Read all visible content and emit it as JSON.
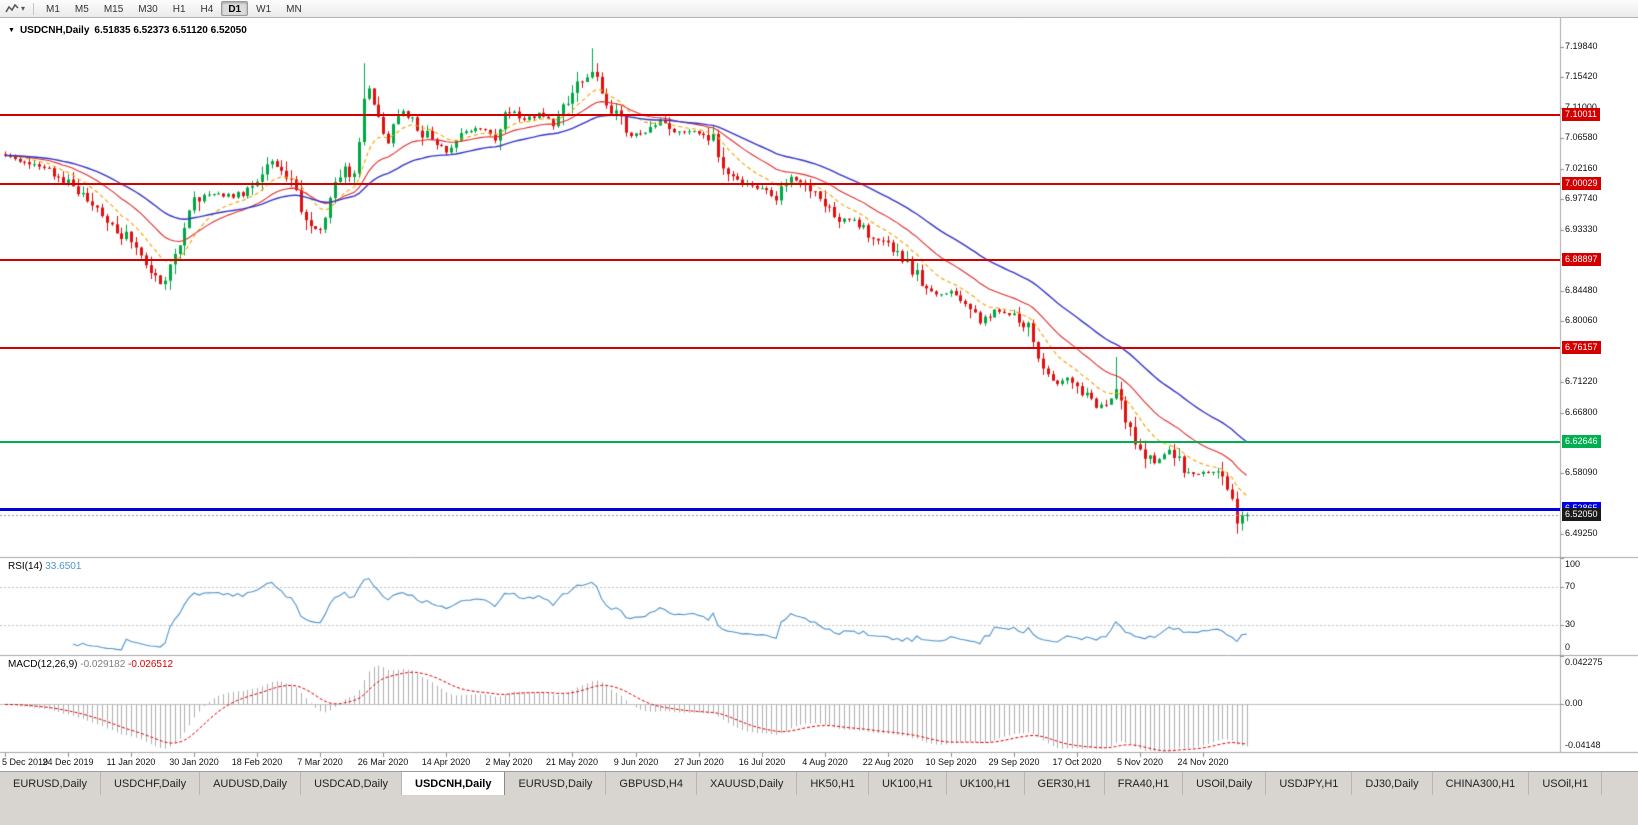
{
  "toolbar": {
    "timeframes": [
      "M1",
      "M5",
      "M15",
      "M30",
      "H1",
      "H4",
      "D1",
      "W1",
      "MN"
    ],
    "active_timeframe": "D1"
  },
  "main_chart": {
    "symbol_period": "USDCNH,Daily",
    "ohlc": "6.51835 6.52373 6.51120 6.52050"
  },
  "tabs": {
    "items": [
      "EURUSD,Daily",
      "USDCHF,Daily",
      "AUDUSD,Daily",
      "USDCAD,Daily",
      "USDCNH,Daily",
      "EURUSD,Daily",
      "GBPUSD,H4",
      "XAUUSD,Daily",
      "HK50,H1",
      "UK100,H1",
      "UK100,H1",
      "GER30,H1",
      "FRA40,H1",
      "USOil,Daily",
      "USDJPY,H1",
      "DJ30,Daily",
      "CHINA300,H1",
      "USOil,H1"
    ],
    "active_index": 4
  },
  "chart_data": {
    "type": "candlestick",
    "title": "USDCNH,Daily",
    "bar_count": 257,
    "ylim": [
      6.4607,
      7.2374
    ],
    "y_ticks": [
      "7.19840",
      "7.15420",
      "7.11000",
      "7.06580",
      "7.02160",
      "6.97740",
      "6.93330",
      "6.84480",
      "6.80060",
      "6.71220",
      "6.66800",
      "6.58090",
      "6.49250"
    ],
    "x_labels": [
      {
        "index": 0,
        "label": "5 Dec 2019"
      },
      {
        "index": 13,
        "label": "24 Dec 2019"
      },
      {
        "index": 26,
        "label": "11 Jan 2020"
      },
      {
        "index": 39,
        "label": "30 Jan 2020"
      },
      {
        "index": 52,
        "label": "18 Feb 2020"
      },
      {
        "index": 65,
        "label": "7 Mar 2020"
      },
      {
        "index": 78,
        "label": "26 Mar 2020"
      },
      {
        "index": 91,
        "label": "14 Apr 2020"
      },
      {
        "index": 104,
        "label": "2 May 2020"
      },
      {
        "index": 117,
        "label": "21 May 2020"
      },
      {
        "index": 130,
        "label": "9 Jun 2020"
      },
      {
        "index": 143,
        "label": "27 Jun 2020"
      },
      {
        "index": 156,
        "label": "16 Jul 2020"
      },
      {
        "index": 169,
        "label": "4 Aug 2020"
      },
      {
        "index": 182,
        "label": "22 Aug 2020"
      },
      {
        "index": 195,
        "label": "10 Sep 2020"
      },
      {
        "index": 208,
        "label": "29 Sep 2020"
      },
      {
        "index": 221,
        "label": "17 Oct 2020"
      },
      {
        "index": 234,
        "label": "5 Nov 2020"
      },
      {
        "index": 247,
        "label": "24 Nov 2020"
      }
    ],
    "candle_colors": {
      "up": "#00a843",
      "down": "#e01010"
    },
    "price_anchors": [
      [
        0,
        7.043
      ],
      [
        6,
        7.028
      ],
      [
        13,
        7.003
      ],
      [
        19,
        6.963
      ],
      [
        24,
        6.928
      ],
      [
        26,
        6.916
      ],
      [
        29,
        6.886
      ],
      [
        32,
        6.856
      ],
      [
        34,
        6.878
      ],
      [
        37,
        6.93
      ],
      [
        39,
        6.976
      ],
      [
        43,
        6.988
      ],
      [
        47,
        6.982
      ],
      [
        50,
        6.99
      ],
      [
        52,
        7.0
      ],
      [
        55,
        7.031
      ],
      [
        58,
        7.018
      ],
      [
        61,
        6.968
      ],
      [
        64,
        6.934
      ],
      [
        66,
        6.95
      ],
      [
        69,
        7.016
      ],
      [
        72,
        7.02
      ],
      [
        74,
        7.115
      ],
      [
        75,
        7.138
      ],
      [
        77,
        7.088
      ],
      [
        79,
        7.066
      ],
      [
        81,
        7.108
      ],
      [
        84,
        7.092
      ],
      [
        88,
        7.062
      ],
      [
        91,
        7.048
      ],
      [
        94,
        7.072
      ],
      [
        98,
        7.082
      ],
      [
        101,
        7.068
      ],
      [
        104,
        7.108
      ],
      [
        107,
        7.092
      ],
      [
        110,
        7.102
      ],
      [
        113,
        7.088
      ],
      [
        116,
        7.118
      ],
      [
        119,
        7.152
      ],
      [
        121,
        7.162
      ],
      [
        123,
        7.136
      ],
      [
        126,
        7.098
      ],
      [
        129,
        7.072
      ],
      [
        132,
        7.078
      ],
      [
        135,
        7.092
      ],
      [
        139,
        7.072
      ],
      [
        143,
        7.076
      ],
      [
        146,
        7.062
      ],
      [
        149,
        7.012
      ],
      [
        152,
        6.998
      ],
      [
        156,
        6.992
      ],
      [
        159,
        6.976
      ],
      [
        162,
        7.01
      ],
      [
        165,
        6.996
      ],
      [
        169,
        6.972
      ],
      [
        172,
        6.948
      ],
      [
        176,
        6.942
      ],
      [
        179,
        6.922
      ],
      [
        182,
        6.908
      ],
      [
        185,
        6.892
      ],
      [
        188,
        6.868
      ],
      [
        191,
        6.84
      ],
      [
        195,
        6.842
      ],
      [
        198,
        6.826
      ],
      [
        201,
        6.798
      ],
      [
        204,
        6.818
      ],
      [
        208,
        6.812
      ],
      [
        211,
        6.792
      ],
      [
        213,
        6.745
      ],
      [
        216,
        6.712
      ],
      [
        219,
        6.716
      ],
      [
        222,
        6.696
      ],
      [
        225,
        6.676
      ],
      [
        229,
        6.695
      ],
      [
        231,
        6.662
      ],
      [
        233,
        6.632
      ],
      [
        235,
        6.605
      ],
      [
        237,
        6.598
      ],
      [
        240,
        6.615
      ],
      [
        243,
        6.585
      ],
      [
        246,
        6.578
      ],
      [
        249,
        6.585
      ],
      [
        251,
        6.568
      ],
      [
        253,
        6.538
      ],
      [
        254,
        6.512
      ],
      [
        255,
        6.516
      ],
      [
        256,
        6.5205
      ]
    ],
    "spikes": [
      {
        "index": 74,
        "high": 7.1747
      },
      {
        "index": 121,
        "high": 7.1964
      },
      {
        "index": 229,
        "high": 6.749
      },
      {
        "index": 254,
        "low": 6.4931
      },
      {
        "index": 255,
        "low": 6.4975
      }
    ],
    "last_candle": {
      "open": 6.51835,
      "high": 6.52373,
      "low": 6.5112,
      "close": 6.5205
    },
    "moving_averages": [
      {
        "name": "ma-fast",
        "period": 10,
        "color": "#f0a500",
        "style": "dashed"
      },
      {
        "name": "ma-medium",
        "period": 21,
        "color": "#e03030",
        "style": "solid"
      },
      {
        "name": "ma-slow",
        "period": 40,
        "color": "#3535c8",
        "style": "solid"
      }
    ],
    "horizontal_lines": [
      {
        "price": 7.10011,
        "label": "7.10011",
        "color": "#d40000",
        "thickness": 2
      },
      {
        "price": 7.00029,
        "label": "7.00029",
        "color": "#d40000",
        "thickness": 2
      },
      {
        "price": 6.88897,
        "label": "6.88897",
        "color": "#d40000",
        "thickness": 2
      },
      {
        "price": 6.76157,
        "label": "6.76157",
        "color": "#d40000",
        "thickness": 2
      },
      {
        "price": 6.62646,
        "label": "6.62646",
        "color": "#00b050",
        "thickness": 2
      },
      {
        "price": 6.52865,
        "label": "6.52865",
        "color": "#0000e0",
        "thickness": 3
      }
    ],
    "current_price": {
      "value": 6.5205,
      "label": "6.52050",
      "box_color": "#1a1a1a"
    },
    "indicators": [
      {
        "name": "RSI",
        "label": "RSI(14)",
        "value_display": "33.6501",
        "period": 14,
        "ylim": [
          0,
          100
        ],
        "levels": [
          30,
          70
        ],
        "y_ticks": [
          "100",
          "70",
          "30",
          "0"
        ],
        "line_color": "#4f94cd"
      },
      {
        "name": "MACD",
        "label": "MACD(12,26,9)",
        "value_main": "-0.029182",
        "value_signal": "-0.026512",
        "fast": 12,
        "slow": 26,
        "signal": 9,
        "ylim": [
          -0.04148,
          0.042275
        ],
        "y_ticks": [
          "0.042275",
          "0.00",
          "-0.04148"
        ],
        "histogram_color": "#b0b0b0",
        "signal_color": "#e00000"
      }
    ]
  }
}
